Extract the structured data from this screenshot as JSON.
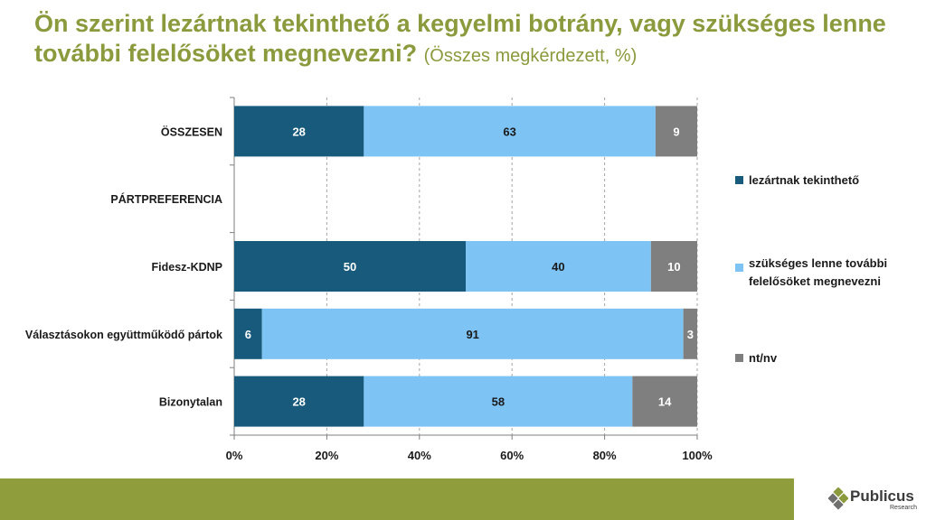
{
  "title": {
    "main": "Ön szerint lezártnak tekinthető a kegyelmi botrány, vagy szükséges lenne további felelősöket megnevezni?",
    "subtitle": "(Összes megkérdezett, %)"
  },
  "colors": {
    "title": "#8a9a3c",
    "footer": "#8f9d3c",
    "series": [
      "#175a7c",
      "#7dc3f3",
      "#7f7f7f"
    ]
  },
  "logo": {
    "name": "Publicus",
    "sub": "Research"
  },
  "chart_data": {
    "type": "bar",
    "orientation": "horizontal",
    "stacked": true,
    "percent_stacked": true,
    "categories": [
      "ÖSSZESEN",
      "PÁRTPREFERENCIA",
      "Fidesz-KDNP",
      "Választásokon együttműködő pártok",
      "Bizonytalan"
    ],
    "series": [
      {
        "name": "lezártnak tekinthető",
        "values": [
          28,
          null,
          50,
          6,
          28
        ]
      },
      {
        "name": "szükséges lenne további felelősöket megnevezni",
        "values": [
          63,
          null,
          40,
          91,
          58
        ]
      },
      {
        "name": "nt/nv",
        "values": [
          9,
          null,
          10,
          3,
          14
        ]
      }
    ],
    "x_ticks": [
      "0%",
      "20%",
      "40%",
      "60%",
      "80%",
      "100%"
    ],
    "xlim": [
      0,
      100
    ],
    "grid": "vertical dashed",
    "legend_position": "right"
  }
}
